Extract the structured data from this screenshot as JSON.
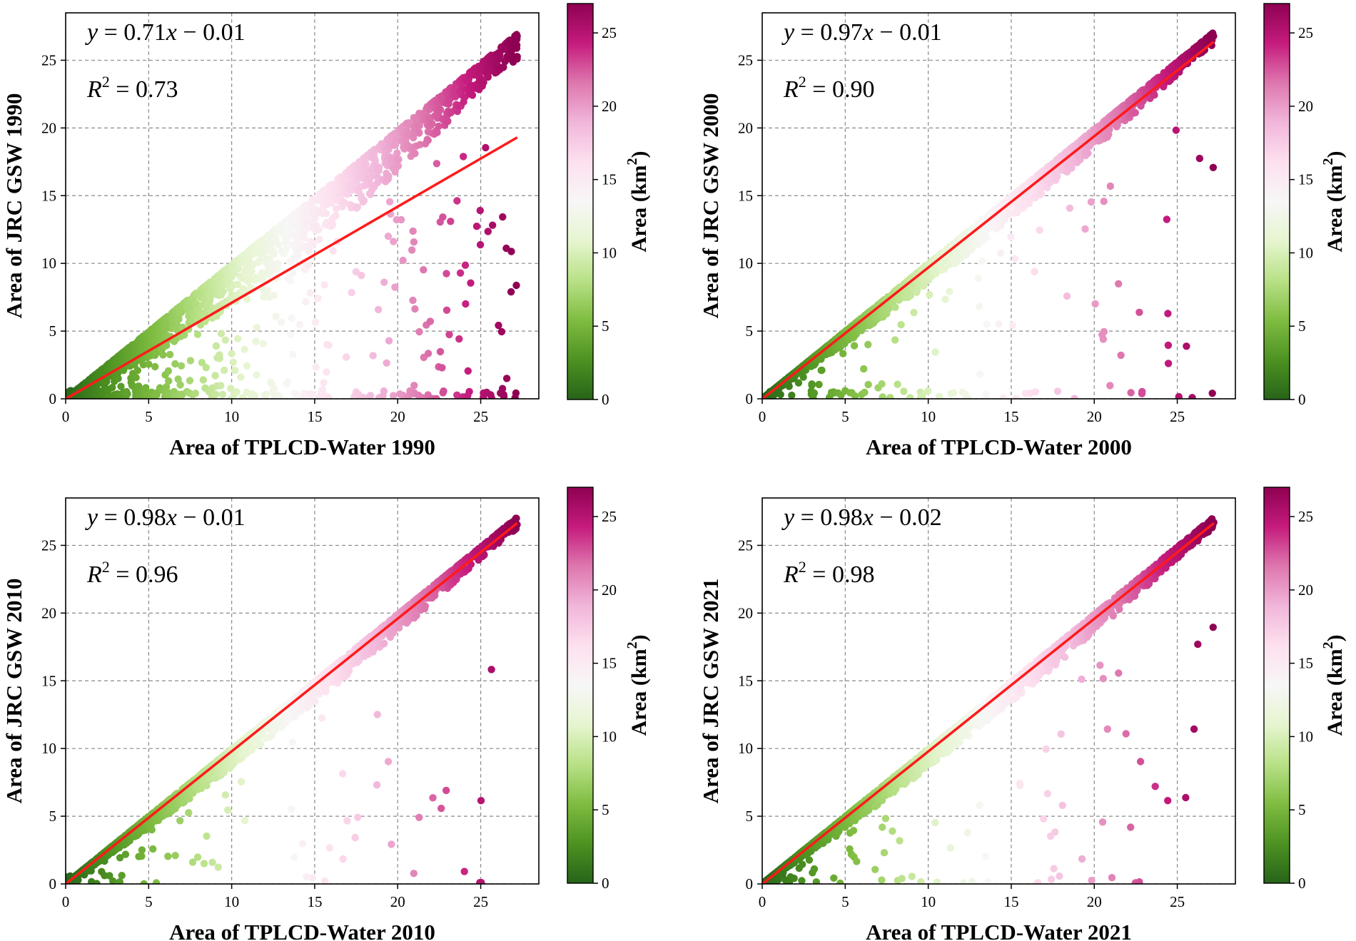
{
  "colormap": {
    "name": "PiYG",
    "stops": [
      "#276419",
      "#4d9221",
      "#7fbc41",
      "#b8e186",
      "#e6f5d0",
      "#f7f7f7",
      "#fde0ef",
      "#f1b6da",
      "#de77ae",
      "#c51b7d",
      "#8e0152"
    ]
  },
  "colors": {
    "fit_line": "#ff1a1a",
    "grid": "#8a8a8a"
  },
  "chart_data": [
    {
      "type": "scatter",
      "year": "1990",
      "xlabel": "Area of TPLCD-Water 1990",
      "ylabel": "Area of JRC GSW 1990",
      "xlim": [
        0,
        28.5
      ],
      "ylim": [
        0,
        28.5
      ],
      "xticks": [
        0,
        5,
        10,
        15,
        20,
        25
      ],
      "yticks": [
        0,
        5,
        10,
        15,
        20,
        25
      ],
      "grid": true,
      "fit": {
        "slope": 0.71,
        "intercept": -0.01,
        "r2": 0.73,
        "x_range": [
          0,
          27.2
        ]
      },
      "equation_parts": {
        "lhs": "y",
        "coef": "0.71",
        "var": "x",
        "op": "−",
        "const": "0.01"
      },
      "r2_parts": {
        "symbol": "R",
        "exp": "2",
        "value": "0.73"
      },
      "colorbar": {
        "label": "Area (km²)",
        "label_base": "Area (km",
        "label_sup": "2",
        "label_end": ")",
        "range": [
          0,
          27
        ],
        "ticks": [
          0,
          5,
          10,
          15,
          20,
          25
        ]
      },
      "scatter_model": {
        "n": 2200,
        "seed": 11,
        "upper_band": 0.99,
        "lower_spread": 0.45,
        "outlier_frac": 0.12,
        "zero_frac": 0.08
      }
    },
    {
      "type": "scatter",
      "year": "2000",
      "xlabel": "Area of TPLCD-Water 2000",
      "ylabel": "Area of JRC GSW 2000",
      "xlim": [
        0,
        28.5
      ],
      "ylim": [
        0,
        28.5
      ],
      "xticks": [
        0,
        5,
        10,
        15,
        20,
        25
      ],
      "yticks": [
        0,
        5,
        10,
        15,
        20,
        25
      ],
      "grid": true,
      "fit": {
        "slope": 0.97,
        "intercept": -0.01,
        "r2": 0.9,
        "x_range": [
          0,
          27.2
        ]
      },
      "equation_parts": {
        "lhs": "y",
        "coef": "0.97",
        "var": "x",
        "op": "−",
        "const": "0.01"
      },
      "r2_parts": {
        "symbol": "R",
        "exp": "2",
        "value": "0.90"
      },
      "colorbar": {
        "label": "Area (km²)",
        "label_base": "Area (km",
        "label_sup": "2",
        "label_end": ")",
        "range": [
          0,
          27
        ],
        "ticks": [
          0,
          5,
          10,
          15,
          20,
          25
        ]
      },
      "scatter_model": {
        "n": 2000,
        "seed": 23,
        "upper_band": 0.995,
        "lower_spread": 0.22,
        "outlier_frac": 0.04,
        "zero_frac": 0.02
      }
    },
    {
      "type": "scatter",
      "year": "2010",
      "xlabel": "Area of TPLCD-Water 2010",
      "ylabel": "Area of JRC GSW 2010",
      "xlim": [
        0,
        28.5
      ],
      "ylim": [
        0,
        28.5
      ],
      "xticks": [
        0,
        5,
        10,
        15,
        20,
        25
      ],
      "yticks": [
        0,
        5,
        10,
        15,
        20,
        25
      ],
      "grid": true,
      "fit": {
        "slope": 0.98,
        "intercept": -0.01,
        "r2": 0.96,
        "x_range": [
          0,
          27.2
        ]
      },
      "equation_parts": {
        "lhs": "y",
        "coef": "0.98",
        "var": "x",
        "op": "−",
        "const": "0.01"
      },
      "r2_parts": {
        "symbol": "R",
        "exp": "2",
        "value": "0.96"
      },
      "colorbar": {
        "label": "Area (km²)",
        "label_base": "Area (km",
        "label_sup": "2",
        "label_end": ")",
        "range": [
          0,
          27
        ],
        "ticks": [
          0,
          5,
          10,
          15,
          20,
          25
        ]
      },
      "scatter_model": {
        "n": 2000,
        "seed": 37,
        "upper_band": 0.995,
        "lower_spread": 0.2,
        "outlier_frac": 0.03,
        "zero_frac": 0.01
      }
    },
    {
      "type": "scatter",
      "year": "2021",
      "xlabel": "Area of TPLCD-Water 2021",
      "ylabel": "Area of JRC GSW 2021",
      "xlim": [
        0,
        28.5
      ],
      "ylim": [
        0,
        28.5
      ],
      "xticks": [
        0,
        5,
        10,
        15,
        20,
        25
      ],
      "yticks": [
        0,
        5,
        10,
        15,
        20,
        25
      ],
      "grid": true,
      "fit": {
        "slope": 0.98,
        "intercept": -0.02,
        "r2": 0.98,
        "x_range": [
          0,
          27.2
        ]
      },
      "equation_parts": {
        "lhs": "y",
        "coef": "0.98",
        "var": "x",
        "op": "−",
        "const": "0.02"
      },
      "r2_parts": {
        "symbol": "R",
        "exp": "2",
        "value": "0.98"
      },
      "colorbar": {
        "label": "Area (km²)",
        "label_base": "Area (km",
        "label_sup": "2",
        "label_end": ")",
        "range": [
          0,
          27
        ],
        "ticks": [
          0,
          5,
          10,
          15,
          20,
          25
        ]
      },
      "scatter_model": {
        "n": 2000,
        "seed": 53,
        "upper_band": 0.995,
        "lower_spread": 0.2,
        "outlier_frac": 0.03,
        "zero_frac": 0.01
      }
    }
  ]
}
